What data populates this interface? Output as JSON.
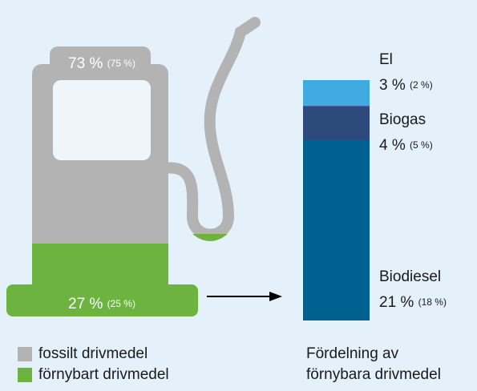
{
  "chart_data": [
    {
      "type": "pictogram",
      "series": [
        {
          "name": "fossilt drivmedel",
          "color": "#b3b3b3",
          "values": [
            73
          ],
          "value_labels": [
            "73 %"
          ],
          "previous_values": [
            75
          ],
          "previous_labels": [
            "(75 %)"
          ]
        },
        {
          "name": "förnybart drivmedel",
          "color": "#6db33f",
          "values": [
            27
          ],
          "value_labels": [
            "27 %"
          ],
          "previous_values": [
            25
          ],
          "previous_labels": [
            "(25 %)"
          ]
        }
      ],
      "ylim": [
        0,
        100
      ]
    },
    {
      "type": "stacked_bar",
      "title": "Fördelning av förnybara drivmedel",
      "series": [
        {
          "name": "Biodiesel",
          "color": "#00608f",
          "values": [
            21
          ],
          "value_labels": [
            "21 %"
          ],
          "previous_values": [
            18
          ],
          "previous_labels": [
            "(18 %)"
          ]
        },
        {
          "name": "Biogas",
          "color": "#2d4a7c",
          "values": [
            4
          ],
          "value_labels": [
            "4 %"
          ],
          "previous_values": [
            5
          ],
          "previous_labels": [
            "(5 %)"
          ]
        },
        {
          "name": "El",
          "color": "#3fa9e0",
          "values": [
            3
          ],
          "value_labels": [
            "3 %"
          ],
          "previous_values": [
            2
          ],
          "previous_labels": [
            "(2 %)"
          ]
        }
      ],
      "ylim": [
        0,
        28
      ]
    }
  ]
}
